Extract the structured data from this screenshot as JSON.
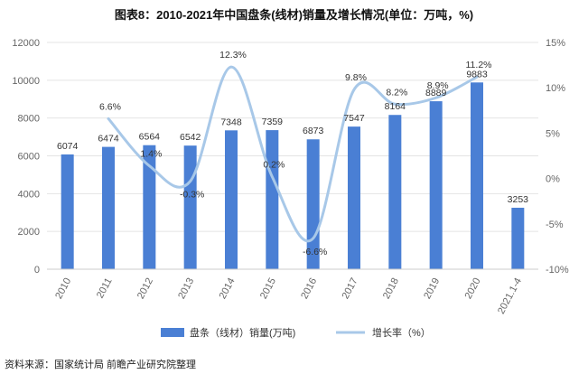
{
  "header": {
    "title": "图表8：2010-2021年中国盘条(线材)销量及增长情况(单位：万吨，%)"
  },
  "footer": {
    "source": "资料来源：国家统计局 前瞻产业研究院整理"
  },
  "colors": {
    "bar": "#4a7fd4",
    "line": "#a8c8e8",
    "grid": "#e4e4e4",
    "axis": "#cccccc"
  },
  "chart_data": {
    "type": "bar",
    "title": "图表8：2010-2021年中国盘条(线材)销量及增长情况(单位：万吨，%)",
    "categories": [
      "2010",
      "2011",
      "2012",
      "2013",
      "2014",
      "2015",
      "2016",
      "2017",
      "2018",
      "2019",
      "2020",
      "2021.1-4"
    ],
    "series": [
      {
        "name": "盘条（线材）销量(万吨)",
        "type": "bar",
        "axis": "left",
        "values": [
          6074,
          6474,
          6564,
          6542,
          7348,
          7359,
          6873,
          7547,
          8164,
          8889,
          9883,
          3253
        ]
      },
      {
        "name": "增长率（%）",
        "type": "line",
        "axis": "right",
        "values": [
          null,
          6.6,
          1.4,
          -0.3,
          12.3,
          0.2,
          -6.6,
          9.8,
          8.2,
          8.9,
          11.2,
          null
        ]
      }
    ],
    "bar_labels": [
      "6074",
      "6474",
      "6564",
      "6542",
      "7348",
      "7359",
      "6873",
      "7547",
      "8164",
      "8889",
      "9883",
      "3253"
    ],
    "line_labels": [
      "",
      "6.6%",
      "1.4%",
      "-0.3%",
      "12.3%",
      "0.2%",
      "-6.6%",
      "9.8%",
      "8.2%",
      "8.9%",
      "11.2%",
      ""
    ],
    "left_axis": {
      "ylim": [
        0,
        12000
      ],
      "ticks": [
        "0",
        "2000",
        "4000",
        "6000",
        "8000",
        "10000",
        "12000"
      ]
    },
    "right_axis": {
      "ylim": [
        -10,
        15
      ],
      "ticks": [
        "-10%",
        "-5%",
        "0%",
        "5%",
        "10%",
        "15%"
      ]
    },
    "grid": true,
    "legend": {
      "position": "bottom",
      "items": [
        "盘条（线材）销量(万吨)",
        "增长率（%）"
      ]
    }
  }
}
